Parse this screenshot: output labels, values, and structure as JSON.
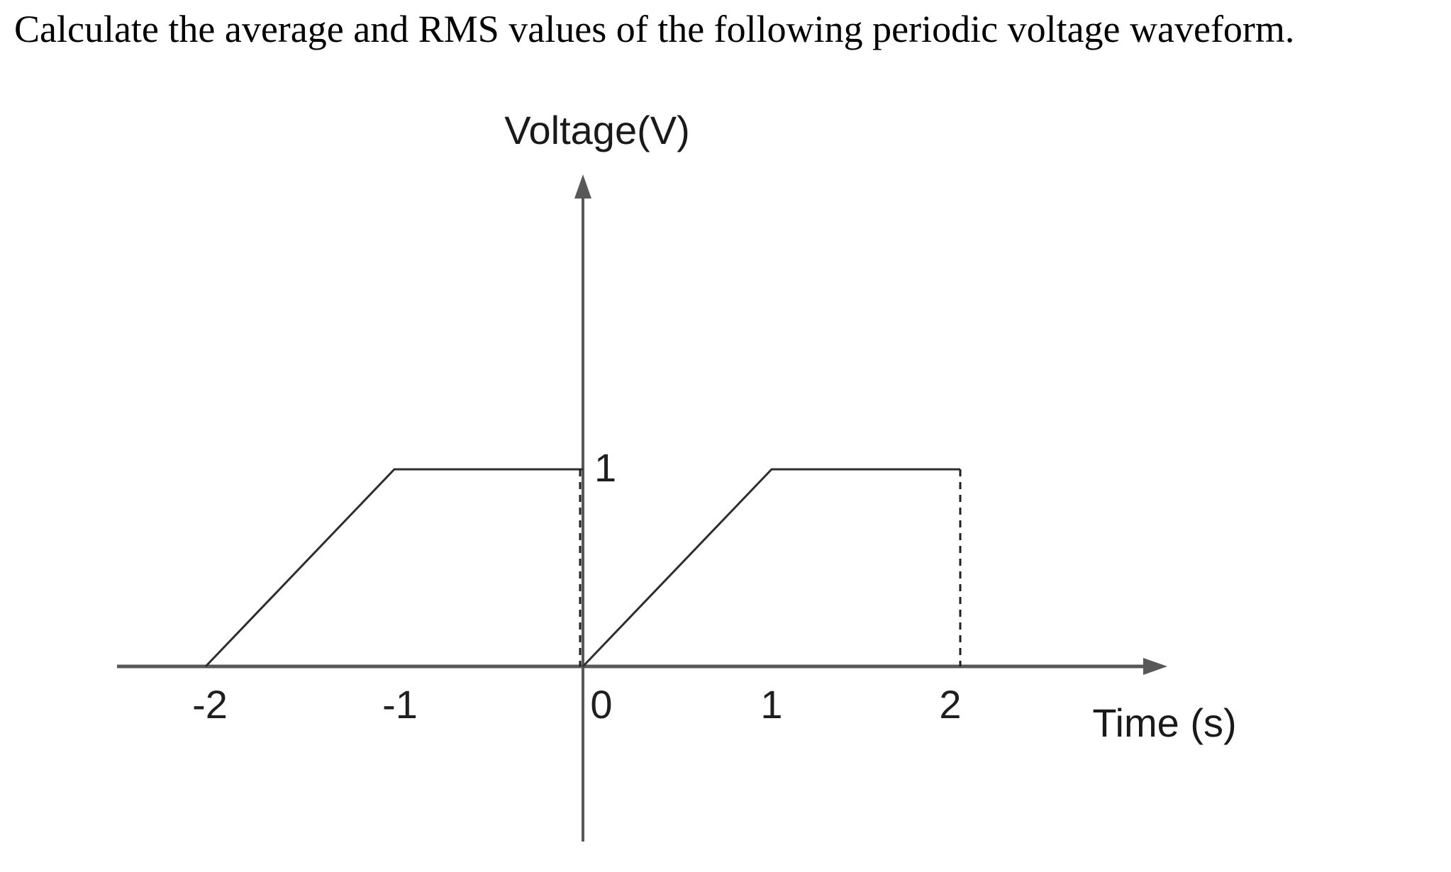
{
  "title": "Calculate the average and RMS values of the following periodic voltage waveform.",
  "chart_data": {
    "type": "line",
    "title": "",
    "ylabel": "Voltage(V)",
    "xlabel": "Time (s)",
    "x_tick_labels": [
      "-2",
      "-1",
      "0",
      "1",
      "2"
    ],
    "x_tick_values": [
      -2,
      -1,
      0,
      1,
      2
    ],
    "y_tick_labels": [
      "1"
    ],
    "y_tick_values": [
      1
    ],
    "xlim": [
      -2.5,
      3.1
    ],
    "ylim": [
      -0.9,
      2.5
    ],
    "grid": false,
    "legend": false,
    "axis_color": "#585858",
    "line_color": "#2e2e2e",
    "dashed_color": "#1f1f1f",
    "series": [
      {
        "name": "period-1-ramp-and-hold",
        "style": "solid",
        "points": [
          [
            -2,
            0
          ],
          [
            -1,
            1
          ],
          [
            0,
            1
          ]
        ]
      },
      {
        "name": "period-1-drop-at-t0",
        "style": "dashed",
        "points": [
          [
            0,
            1
          ],
          [
            0,
            0
          ]
        ]
      },
      {
        "name": "period-2-ramp-and-hold",
        "style": "solid",
        "points": [
          [
            0,
            0
          ],
          [
            1,
            1
          ],
          [
            2,
            1
          ]
        ]
      },
      {
        "name": "period-2-drop-at-t2",
        "style": "dashed",
        "points": [
          [
            2,
            1
          ],
          [
            2,
            0
          ]
        ]
      }
    ]
  }
}
